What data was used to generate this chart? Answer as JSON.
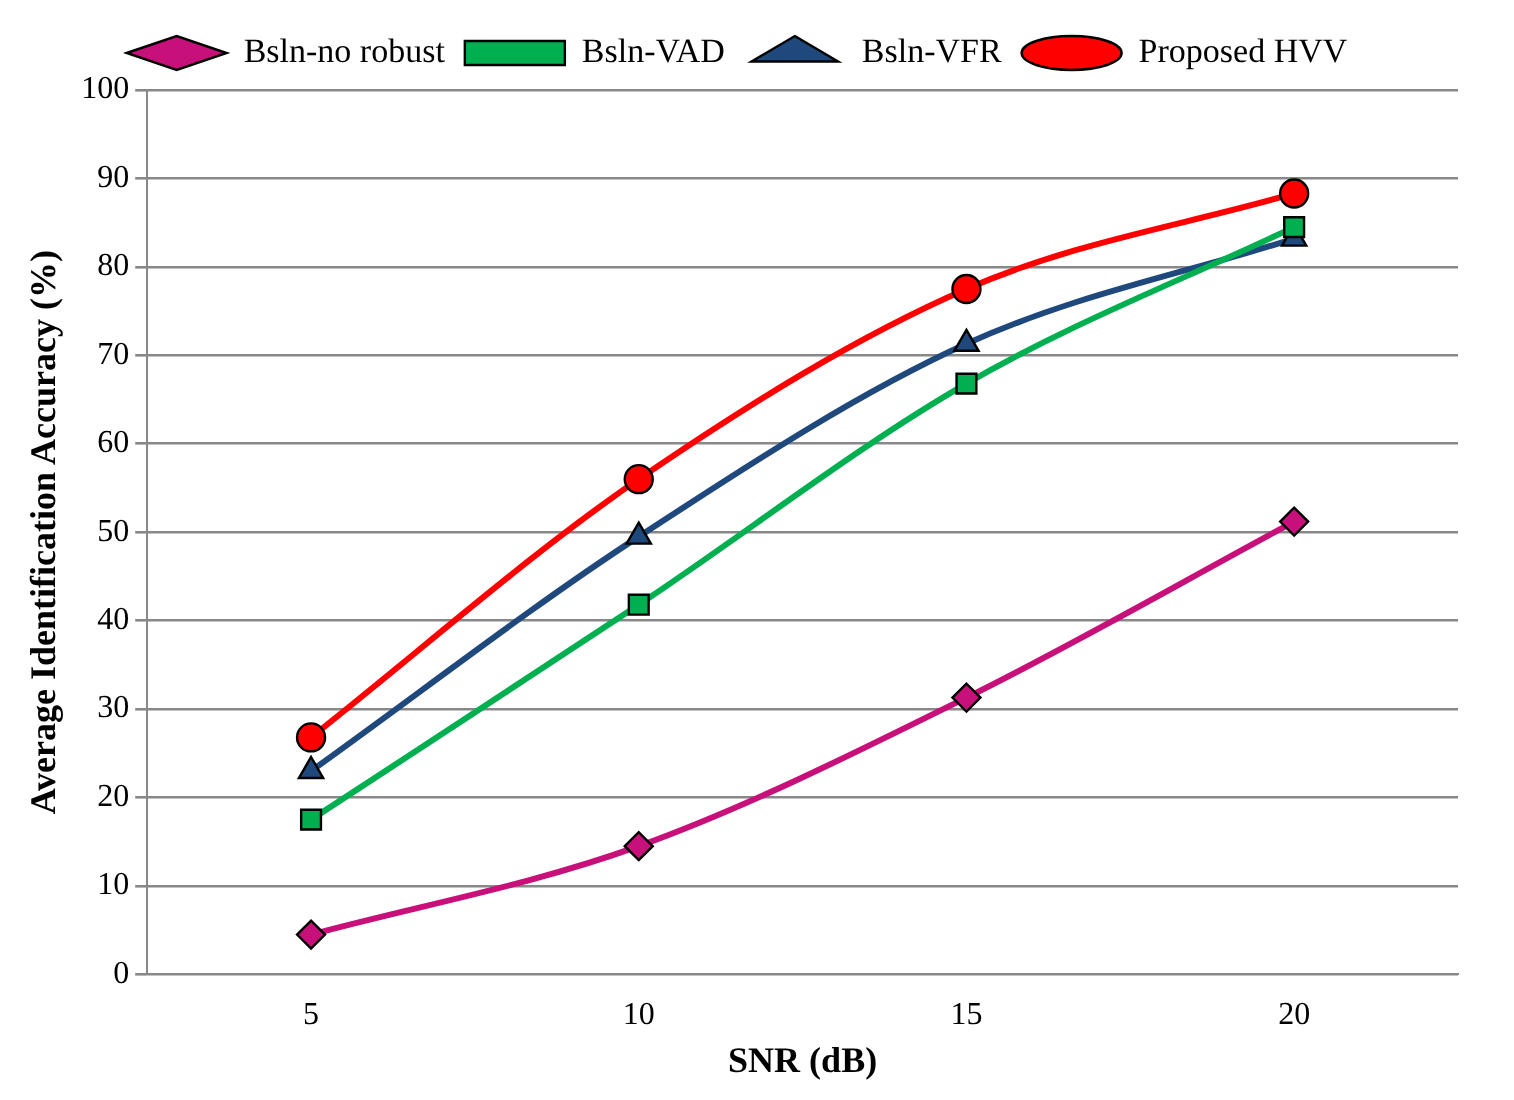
{
  "chart_data": {
    "type": "line",
    "xlabel": "SNR (dB)",
    "ylabel": "Average Identification Accuracy (%)",
    "categories": [
      "5",
      "10",
      "15",
      "20"
    ],
    "ylim": [
      0,
      100
    ],
    "yticks": [
      0,
      10,
      20,
      30,
      40,
      50,
      60,
      70,
      80,
      90,
      100
    ],
    "grid": "y",
    "legend": "top",
    "line_style": "solid",
    "series": [
      {
        "name": "Bsln-no robust",
        "color": "#c8107a",
        "marker": "diamond",
        "values": [
          4.5,
          14.5,
          31.3,
          51.2
        ]
      },
      {
        "name": "Bsln-VAD",
        "color": "#00b050",
        "marker": "square",
        "values": [
          17.5,
          41.8,
          66.8,
          84.5
        ]
      },
      {
        "name": "Bsln-VFR",
        "color": "#1f497d",
        "marker": "triangle",
        "values": [
          23,
          49.5,
          71.3,
          83.2
        ]
      },
      {
        "name": "Proposed HVV",
        "color": "#ff0000",
        "marker": "circle",
        "values": [
          26.8,
          56,
          77.5,
          88.3
        ]
      }
    ]
  }
}
